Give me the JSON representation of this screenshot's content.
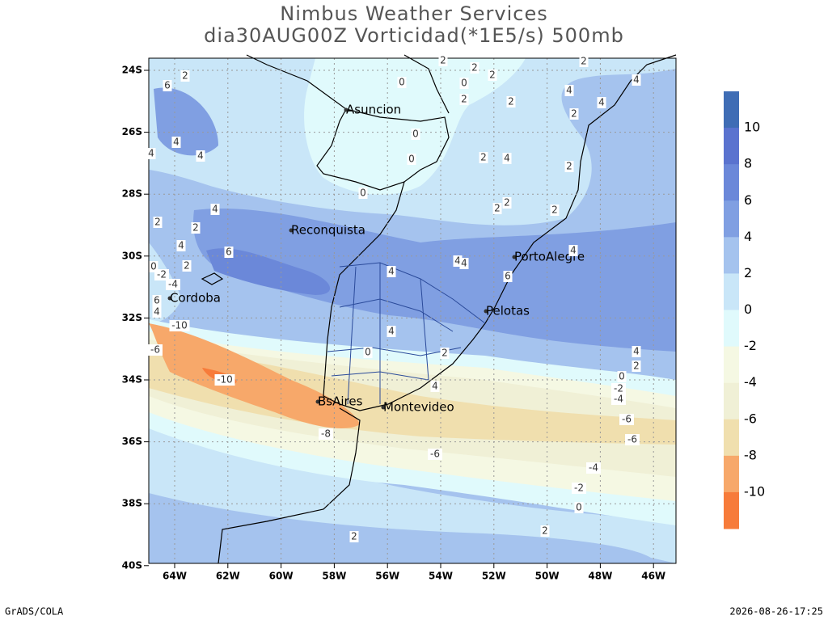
{
  "header": {
    "title": "Nimbus Weather Services",
    "subtitle": "dia30AUG00Z Vorticidad(*1E5/s) 500mb"
  },
  "lat_labels": [
    "24S",
    "26S",
    "28S",
    "30S",
    "32S",
    "34S",
    "36S",
    "38S",
    "40S"
  ],
  "lon_labels": [
    "64W",
    "62W",
    "60W",
    "58W",
    "56W",
    "54W",
    "52W",
    "50W",
    "48W",
    "46W"
  ],
  "colorbar": {
    "labels": [
      "10",
      "8",
      "6",
      "4",
      "2",
      "0",
      "-2",
      "-4",
      "-6",
      "-8",
      "-10"
    ],
    "colors": [
      "#3f6db5",
      "#5a73cf",
      "#6b88d9",
      "#809fe2",
      "#a5c3ee",
      "#c9e6f8",
      "#e0fafc",
      "#f5f8e3",
      "#f0f0d6",
      "#f0dfae",
      "#f7a86a",
      "#f77b3a"
    ]
  },
  "cities": [
    "Asuncion",
    "Reconquista",
    "Cordoba",
    "PortoAlegre",
    "Pelotas",
    "BsAires",
    "Montevideo"
  ],
  "contour_labels": [
    "2",
    "2",
    "2",
    "2",
    "2",
    "6",
    "0",
    "0",
    "2",
    "2",
    "4",
    "4",
    "4",
    "2",
    "4",
    "4",
    "4",
    "0",
    "0",
    "2",
    "4",
    "2",
    "0",
    "2",
    "2",
    "2",
    "4",
    "2",
    "2",
    "4",
    "6",
    "4",
    "4",
    "4",
    "0",
    "2",
    "4",
    "6",
    "-2",
    "-4",
    "6",
    "4",
    "-10",
    "-6",
    "4",
    "0",
    "2",
    "4",
    "2",
    "-10",
    "0",
    "-2",
    "-4",
    "4",
    "-8",
    "-6",
    "-6",
    "-6",
    "-4",
    "-2",
    "0",
    "2",
    "2"
  ],
  "footer": {
    "left": "GrADS/COLA",
    "right": "2026-08-26-17:25"
  }
}
